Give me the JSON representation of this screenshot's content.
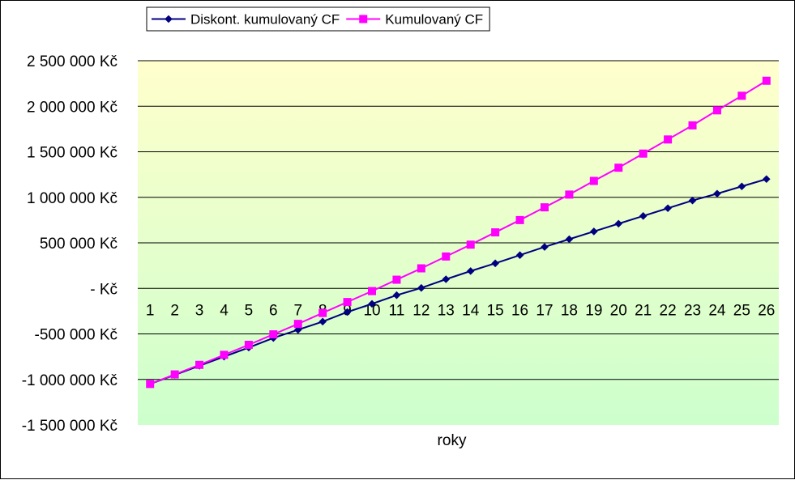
{
  "chart_data": {
    "type": "line",
    "title": "",
    "xlabel": "roky",
    "ylabel": "",
    "x": [
      1,
      2,
      3,
      4,
      5,
      6,
      7,
      8,
      9,
      10,
      11,
      12,
      13,
      14,
      15,
      16,
      17,
      18,
      19,
      20,
      21,
      22,
      23,
      24,
      25,
      26
    ],
    "x_tick_labels": [
      "1",
      "2",
      "3",
      "4",
      "5",
      "6",
      "7",
      "8",
      "9",
      "10",
      "11",
      "12",
      "13",
      "14",
      "15",
      "16",
      "17",
      "18",
      "19",
      "20",
      "21",
      "22",
      "23",
      "24",
      "25",
      "26"
    ],
    "ylim": [
      -1500000,
      2500000
    ],
    "y_ticks": [
      -1500000,
      -1000000,
      -500000,
      0,
      500000,
      1000000,
      1500000,
      2000000,
      2500000
    ],
    "y_tick_labels": [
      "-1 500 000 Kč",
      "-1 000 000 Kč",
      "-500 000 Kč",
      "- Kč",
      "500 000 Kč",
      "1 000 000 Kč",
      "1 500 000 Kč",
      "2 000 000 Kč",
      "2 500 000 Kč"
    ],
    "grid": "horizontal",
    "legend_position": "top-left",
    "background_gradient": [
      "#ffffcc",
      "#ccffcc"
    ],
    "series": [
      {
        "name": "Diskont. kumulovaný CF",
        "color": "#000080",
        "marker": "diamond",
        "values": [
          -1050000,
          -950000,
          -850000,
          -750000,
          -650000,
          -545000,
          -455000,
          -365000,
          -260000,
          -170000,
          -75000,
          5000,
          100000,
          190000,
          275000,
          365000,
          455000,
          540000,
          625000,
          710000,
          795000,
          880000,
          965000,
          1040000,
          1120000,
          1200000
        ]
      },
      {
        "name": "Kumulovaný CF",
        "color": "#ff00ff",
        "marker": "square",
        "values": [
          -1050000,
          -945000,
          -840000,
          -730000,
          -620000,
          -505000,
          -390000,
          -270000,
          -150000,
          -30000,
          95000,
          220000,
          350000,
          480000,
          615000,
          750000,
          890000,
          1030000,
          1180000,
          1325000,
          1480000,
          1635000,
          1790000,
          1955000,
          2115000,
          2280000
        ]
      }
    ]
  }
}
